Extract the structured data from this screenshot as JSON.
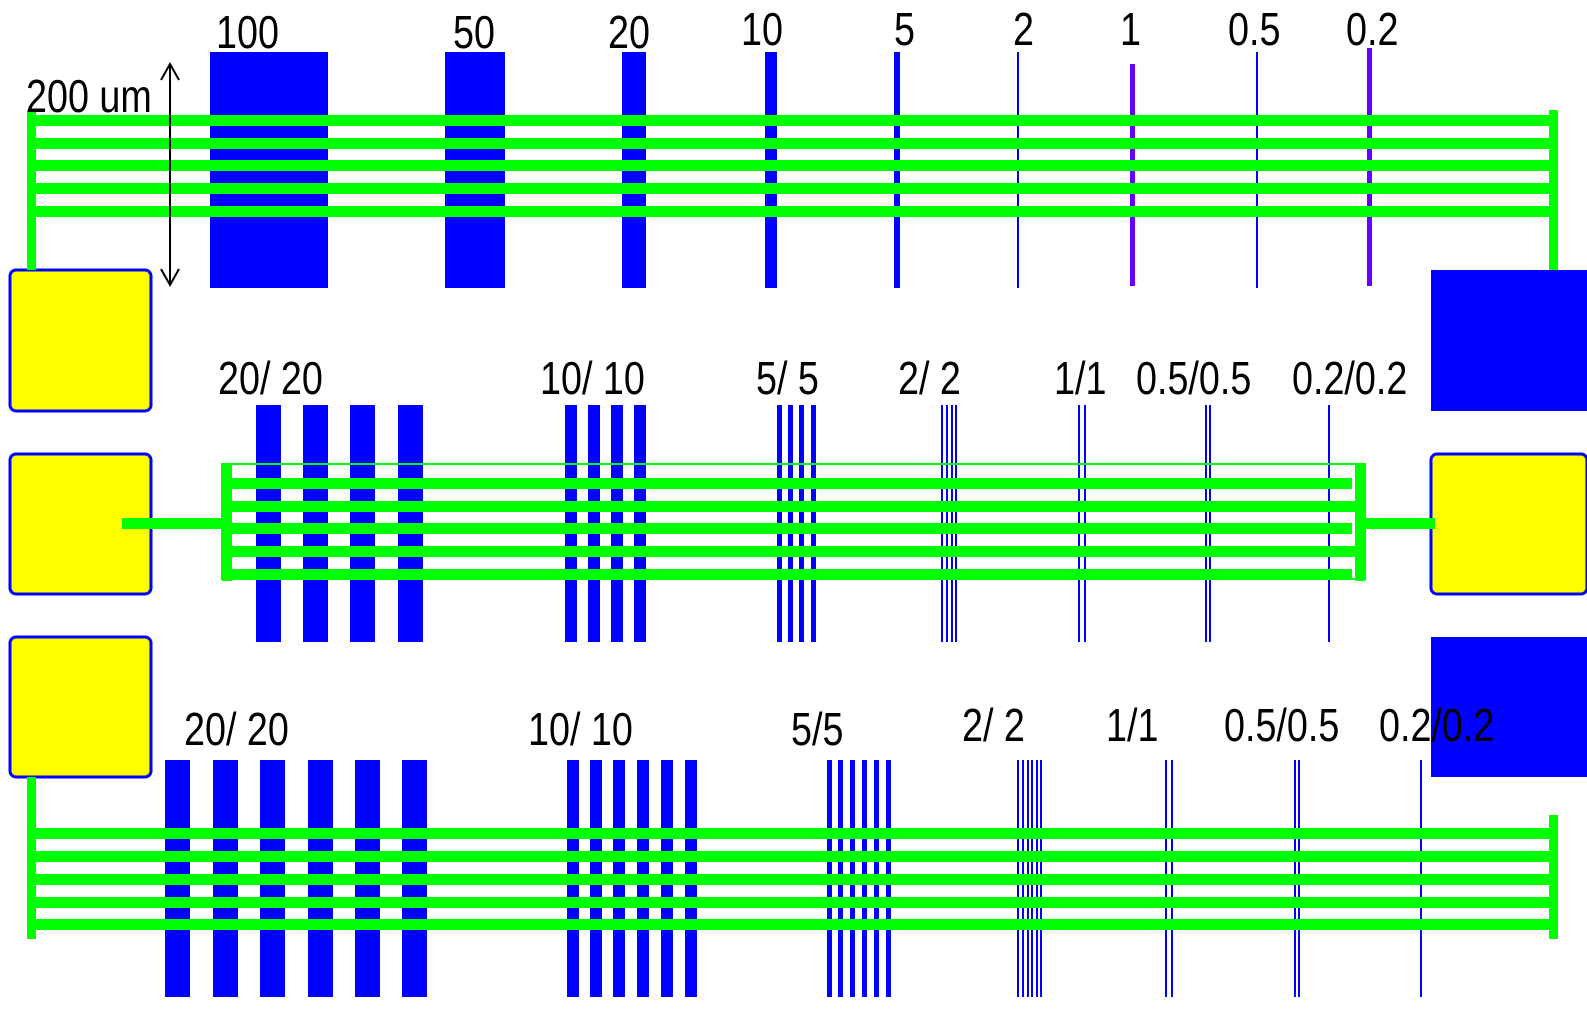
{
  "scale_bar": {
    "label": "200 um"
  },
  "row1": {
    "labels": [
      "100",
      "50",
      "20",
      "10",
      "5",
      "2",
      "1",
      "0.5",
      "0.2"
    ]
  },
  "row2": {
    "labels": [
      "20/ 20",
      "10/ 10",
      "5/ 5",
      "2/ 2",
      "1/1",
      "0.5/0.5",
      "0.2/0.2"
    ]
  },
  "row3": {
    "labels": [
      "20/ 20",
      "10/ 10",
      "5/5",
      "2/ 2",
      "1/1",
      "0.5/0.5",
      "0.2/0.2"
    ]
  },
  "colors": {
    "line_green": "#00ff00",
    "metal_blue": "#0000ff",
    "thin_violet": "#6a00ff",
    "pad_yellow": "#ffff00",
    "pad_border": "#0000ff"
  }
}
